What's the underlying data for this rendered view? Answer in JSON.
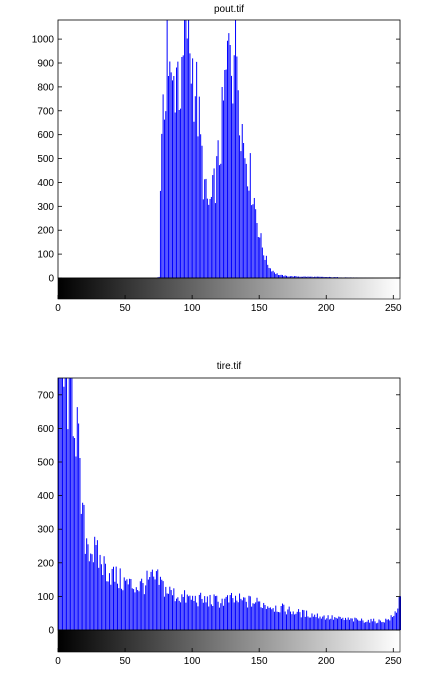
{
  "chart_data": [
    {
      "type": "bar",
      "title": "pout.tif",
      "xlabel": "",
      "ylabel": "",
      "xlim": [
        0,
        255
      ],
      "ylim": [
        0,
        1080
      ],
      "x_ticks": [
        0,
        50,
        100,
        150,
        200,
        250
      ],
      "y_ticks": [
        0,
        100,
        200,
        300,
        400,
        500,
        600,
        700,
        800,
        900,
        1000
      ],
      "grid": false,
      "bar_color": "#0000ff",
      "colorbar": "grayscale 0-255",
      "control_points": [
        [
          73,
          0
        ],
        [
          75,
          5
        ],
        [
          76,
          420
        ],
        [
          78,
          620
        ],
        [
          80,
          880
        ],
        [
          81,
          1080
        ],
        [
          82,
          900
        ],
        [
          84,
          760
        ],
        [
          86,
          800
        ],
        [
          88,
          900
        ],
        [
          90,
          840
        ],
        [
          92,
          760
        ],
        [
          94,
          1000
        ],
        [
          96,
          1080
        ],
        [
          98,
          960
        ],
        [
          100,
          880
        ],
        [
          102,
          820
        ],
        [
          104,
          700
        ],
        [
          106,
          560
        ],
        [
          108,
          420
        ],
        [
          110,
          340
        ],
        [
          112,
          300
        ],
        [
          114,
          320
        ],
        [
          116,
          380
        ],
        [
          118,
          440
        ],
        [
          120,
          520
        ],
        [
          122,
          640
        ],
        [
          124,
          780
        ],
        [
          126,
          880
        ],
        [
          128,
          1080
        ],
        [
          130,
          920
        ],
        [
          132,
          1060
        ],
        [
          134,
          880
        ],
        [
          136,
          700
        ],
        [
          138,
          560
        ],
        [
          140,
          520
        ],
        [
          142,
          460
        ],
        [
          144,
          390
        ],
        [
          146,
          330
        ],
        [
          148,
          250
        ],
        [
          150,
          180
        ],
        [
          152,
          130
        ],
        [
          154,
          90
        ],
        [
          156,
          60
        ],
        [
          158,
          40
        ],
        [
          160,
          30
        ],
        [
          162,
          20
        ],
        [
          165,
          12
        ],
        [
          170,
          8
        ],
        [
          180,
          6
        ],
        [
          190,
          5
        ],
        [
          200,
          4
        ],
        [
          210,
          3
        ],
        [
          220,
          2
        ],
        [
          230,
          1
        ],
        [
          240,
          0
        ]
      ]
    },
    {
      "type": "bar",
      "title": "tire.tif",
      "xlabel": "",
      "ylabel": "",
      "xlim": [
        0,
        255
      ],
      "ylim": [
        0,
        750
      ],
      "x_ticks": [
        0,
        50,
        100,
        150,
        200,
        250
      ],
      "y_ticks": [
        0,
        100,
        200,
        300,
        400,
        500,
        600,
        700
      ],
      "grid": false,
      "bar_color": "#0000ff",
      "colorbar": "grayscale 0-255",
      "control_points": [
        [
          0,
          750
        ],
        [
          10,
          750
        ],
        [
          14,
          600
        ],
        [
          16,
          420
        ],
        [
          18,
          330
        ],
        [
          20,
          280
        ],
        [
          25,
          240
        ],
        [
          30,
          210
        ],
        [
          35,
          185
        ],
        [
          40,
          165
        ],
        [
          45,
          150
        ],
        [
          50,
          140
        ],
        [
          55,
          132
        ],
        [
          60,
          130
        ],
        [
          65,
          140
        ],
        [
          70,
          150
        ],
        [
          75,
          145
        ],
        [
          80,
          120
        ],
        [
          85,
          108
        ],
        [
          90,
          100
        ],
        [
          95,
          95
        ],
        [
          100,
          92
        ],
        [
          110,
          88
        ],
        [
          120,
          85
        ],
        [
          130,
          90
        ],
        [
          140,
          85
        ],
        [
          150,
          80
        ],
        [
          160,
          70
        ],
        [
          170,
          60
        ],
        [
          180,
          50
        ],
        [
          190,
          45
        ],
        [
          200,
          38
        ],
        [
          210,
          33
        ],
        [
          220,
          30
        ],
        [
          230,
          28
        ],
        [
          240,
          26
        ],
        [
          245,
          30
        ],
        [
          250,
          40
        ],
        [
          252,
          60
        ],
        [
          255,
          105
        ]
      ]
    }
  ]
}
